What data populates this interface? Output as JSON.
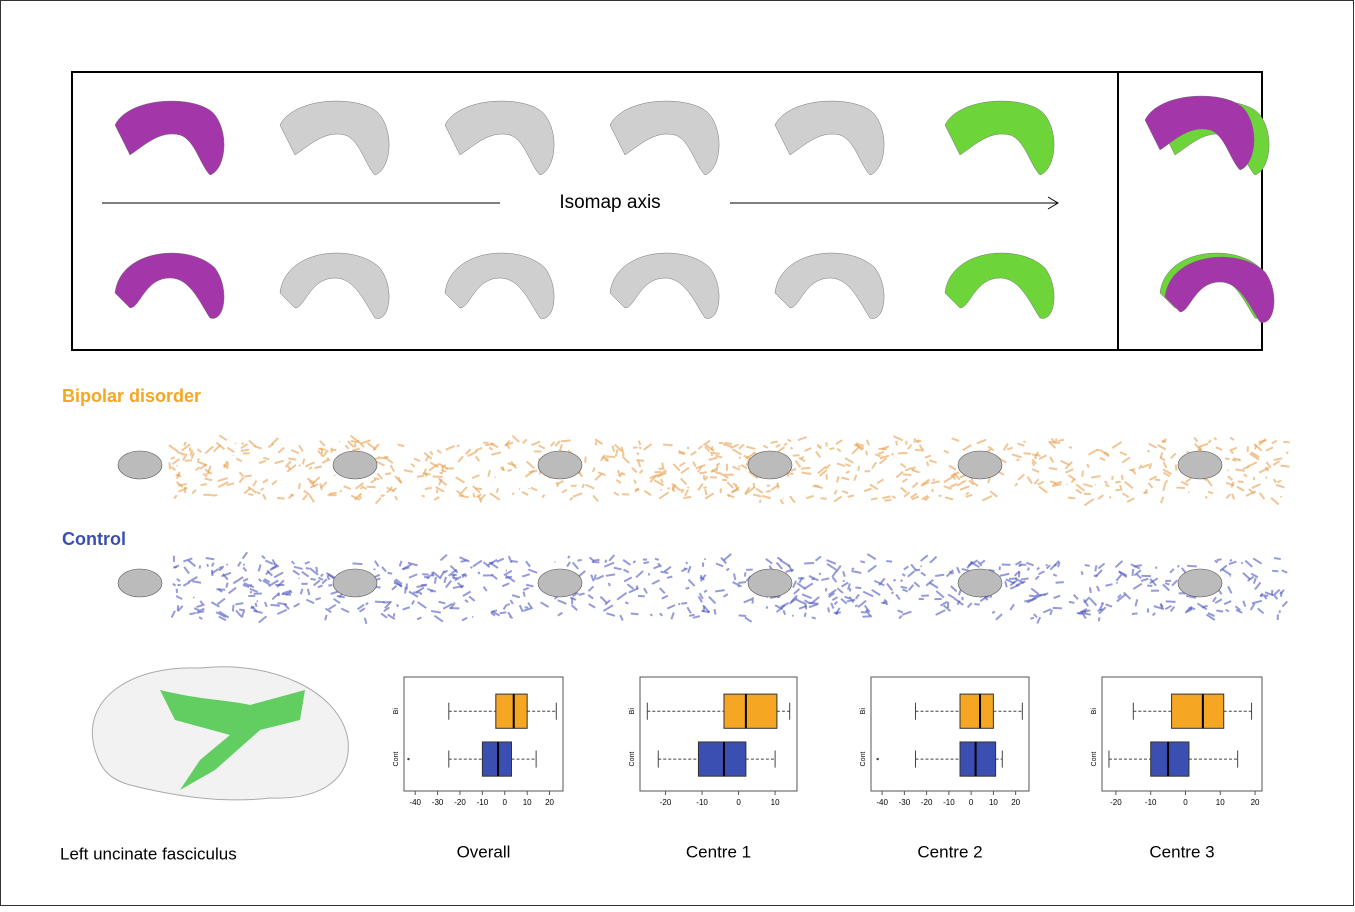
{
  "isomap_label": "Isomap axis",
  "group_labels": {
    "bipolar": "Bipolar disorder",
    "control": "Control"
  },
  "brain_caption": "Left uncinate fasciculus",
  "chart_data": [
    {
      "type": "box",
      "title": "Overall",
      "xlim": [
        -45,
        26
      ],
      "xticks": [
        -40,
        -30,
        -20,
        -10,
        0,
        10,
        20
      ],
      "series": [
        {
          "name": "Bi",
          "color": "#f5a623",
          "min": -25,
          "q1": -4,
          "median": 4,
          "q3": 10,
          "max": 23,
          "outliers": []
        },
        {
          "name": "Cont",
          "color": "#3b4fb3",
          "min": -25,
          "q1": -10,
          "median": -3,
          "q3": 3,
          "max": 14,
          "outliers": [
            -43
          ]
        }
      ]
    },
    {
      "type": "box",
      "title": "Centre 1",
      "xlim": [
        -27,
        16
      ],
      "xticks": [
        -20,
        -10,
        0,
        10
      ],
      "series": [
        {
          "name": "Bi",
          "color": "#f5a623",
          "min": -25,
          "q1": -4,
          "median": 2,
          "q3": 10.5,
          "max": 14,
          "outliers": []
        },
        {
          "name": "Cont",
          "color": "#3b4fb3",
          "min": -22,
          "q1": -11,
          "median": -4,
          "q3": 2,
          "max": 10,
          "outliers": []
        }
      ]
    },
    {
      "type": "box",
      "title": "Centre 2",
      "xlim": [
        -45,
        26
      ],
      "xticks": [
        -40,
        -30,
        -20,
        -10,
        0,
        10,
        20
      ],
      "series": [
        {
          "name": "Bi",
          "color": "#f5a623",
          "min": -25,
          "q1": -5,
          "median": 4,
          "q3": 10,
          "max": 23,
          "outliers": []
        },
        {
          "name": "Cont",
          "color": "#3b4fb3",
          "min": -25,
          "q1": -5,
          "median": 2,
          "q3": 11,
          "max": 14,
          "outliers": [
            -42
          ]
        }
      ]
    },
    {
      "type": "box",
      "title": "Centre 3",
      "xlim": [
        -24,
        22
      ],
      "xticks": [
        -20,
        -10,
        0,
        10,
        20
      ],
      "series": [
        {
          "name": "Bi",
          "color": "#f5a623",
          "min": -15,
          "q1": -4,
          "median": 5,
          "q3": 11,
          "max": 19,
          "outliers": []
        },
        {
          "name": "Cont",
          "color": "#3b4fb3",
          "min": -22,
          "q1": -10,
          "median": -5,
          "q3": 1,
          "max": 15,
          "outliers": []
        }
      ]
    }
  ]
}
